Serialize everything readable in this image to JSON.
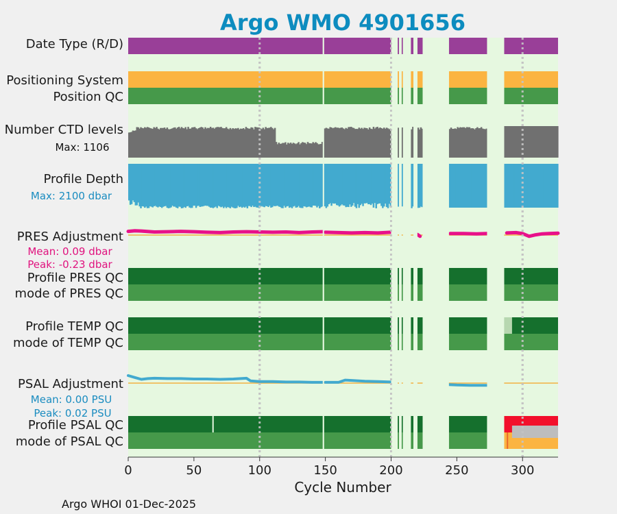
{
  "chart_data": {
    "type": "status-timeline",
    "title": "Argo WMO 4901656",
    "xlabel": "Cycle Number",
    "xlim": [
      0,
      327
    ],
    "xticks": [
      0,
      50,
      100,
      150,
      200,
      250,
      300
    ],
    "footer": "Argo WHOI 01-Dec-2025",
    "grid": "dotted vertical at 100, 200, 300",
    "data_segments": [
      [
        0,
        148
      ],
      [
        149,
        200
      ],
      [
        205,
        206
      ],
      [
        208,
        209
      ],
      [
        215,
        217
      ],
      [
        220,
        224
      ],
      [
        244,
        273
      ],
      [
        286,
        327
      ]
    ],
    "rows": [
      {
        "key": "date_type",
        "label": "Date Type (R/D)",
        "color": "#993f98",
        "values": {
          "D": [
            [
              0,
              327
            ]
          ]
        }
      },
      {
        "key": "positioning_system",
        "label": "Positioning System",
        "color": "#fbb441",
        "values": {
          "GPS": [
            [
              0,
              327
            ]
          ]
        }
      },
      {
        "key": "position_qc",
        "label": "Position QC",
        "color": "#46994a",
        "values": {
          "1": [
            [
              0,
              327
            ]
          ]
        }
      },
      {
        "key": "n_ctd_levels",
        "label": "Number CTD levels",
        "sublabel": "Max: 1106",
        "color": "#707070",
        "max": 1106
      },
      {
        "key": "profile_depth",
        "label": "Profile Depth",
        "sublabel": "Max: 2100 dbar",
        "sublabel_color": "#1a8cc0",
        "color": "#42aacf",
        "max_dbar": 2100
      },
      {
        "key": "pres_adjustment",
        "label": "PRES Adjustment",
        "stats": [
          "Mean: 0.09 dbar",
          "Peak: -0.23 dbar"
        ],
        "stats_color": "#e0127e",
        "color": "#e8118a",
        "mean": 0.09,
        "peak": -0.23
      },
      {
        "key": "profile_pres_qc",
        "label": "Profile PRES QC",
        "color": "#15702d",
        "values": {
          "A": [
            [
              0,
              327
            ]
          ]
        }
      },
      {
        "key": "mode_pres_qc",
        "label": "mode of PRES QC",
        "color": "#46994a",
        "values": {
          "1": [
            [
              0,
              327
            ]
          ]
        }
      },
      {
        "key": "profile_temp_qc",
        "label": "Profile TEMP QC",
        "color": "#15702d",
        "values": {
          "A": [
            [
              0,
              327
            ]
          ]
        }
      },
      {
        "key": "mode_temp_qc",
        "label": "mode of TEMP QC",
        "color": "#46994a",
        "values": {
          "1": [
            [
              0,
              327
            ]
          ]
        }
      },
      {
        "key": "psal_adjustment",
        "label": "PSAL Adjustment",
        "stats": [
          "Mean: 0.00 PSU",
          "Peak: 0.02 PSU"
        ],
        "stats_color": "#1a8cc0",
        "color": "#42aacf",
        "mean": 0.0,
        "peak": 0.02
      },
      {
        "key": "profile_psal_qc",
        "label": "Profile PSAL QC",
        "color": "#15702d",
        "values": {
          "A": [
            [
              0,
              285
            ]
          ],
          "F": [
            [
              286,
              327
            ]
          ]
        }
      },
      {
        "key": "mode_psal_qc",
        "label": "mode of PSAL QC",
        "color": "#46994a",
        "values": {
          "1": [
            [
              0,
              285
            ]
          ],
          "3": [
            [
              286,
              327
            ]
          ],
          "4": [
            [
              292,
              327
            ]
          ]
        }
      }
    ],
    "pres_adjustment_series": {
      "x": [
        0,
        5,
        10,
        20,
        30,
        40,
        50,
        60,
        70,
        80,
        90,
        100,
        110,
        120,
        130,
        140,
        148,
        150,
        160,
        170,
        180,
        190,
        200,
        205,
        220,
        222,
        245,
        255,
        265,
        273,
        288,
        295,
        300,
        305,
        310,
        315,
        320,
        327
      ],
      "y": [
        0.12,
        0.14,
        0.13,
        0.1,
        0.11,
        0.12,
        0.11,
        0.09,
        0.08,
        0.1,
        0.11,
        0.1,
        0.09,
        0.1,
        0.08,
        0.1,
        0.11,
        0.09,
        0.08,
        0.07,
        0.08,
        0.07,
        0.09,
        0.05,
        0.02,
        -0.04,
        0.05,
        0.05,
        0.04,
        0.05,
        0.07,
        0.08,
        0.05,
        -0.04,
        0.01,
        0.04,
        0.05,
        0.06
      ]
    },
    "psal_adjustment_series": {
      "x": [
        0,
        5,
        10,
        15,
        20,
        30,
        40,
        50,
        60,
        70,
        80,
        90,
        93,
        100,
        110,
        120,
        130,
        140,
        148,
        150,
        160,
        165,
        170,
        180,
        190,
        200,
        205,
        221,
        244,
        250,
        260,
        273
      ],
      "y": [
        0.02,
        0.015,
        0.01,
        0.012,
        0.013,
        0.012,
        0.012,
        0.011,
        0.011,
        0.01,
        0.011,
        0.013,
        0.006,
        0.004,
        0.004,
        0.003,
        0.003,
        0.002,
        0.002,
        0.002,
        0.002,
        0.008,
        0.007,
        0.005,
        0.004,
        0.003,
        0.004,
        0.0,
        -0.004,
        -0.005,
        -0.006,
        -0.006
      ]
    }
  },
  "colors": {
    "title": "#0d8cbf",
    "axes_bg": "#e6f8e0",
    "ref_line": "#f2b041",
    "pres_qc_A": "#15702d",
    "qc_1": "#46994a",
    "temp_qc_faded": "#b7d7b0",
    "psal_qc_F": "#f2102b",
    "psal_qc_4": "#bdbdbd",
    "psal_qc_3": "#fbb441"
  }
}
